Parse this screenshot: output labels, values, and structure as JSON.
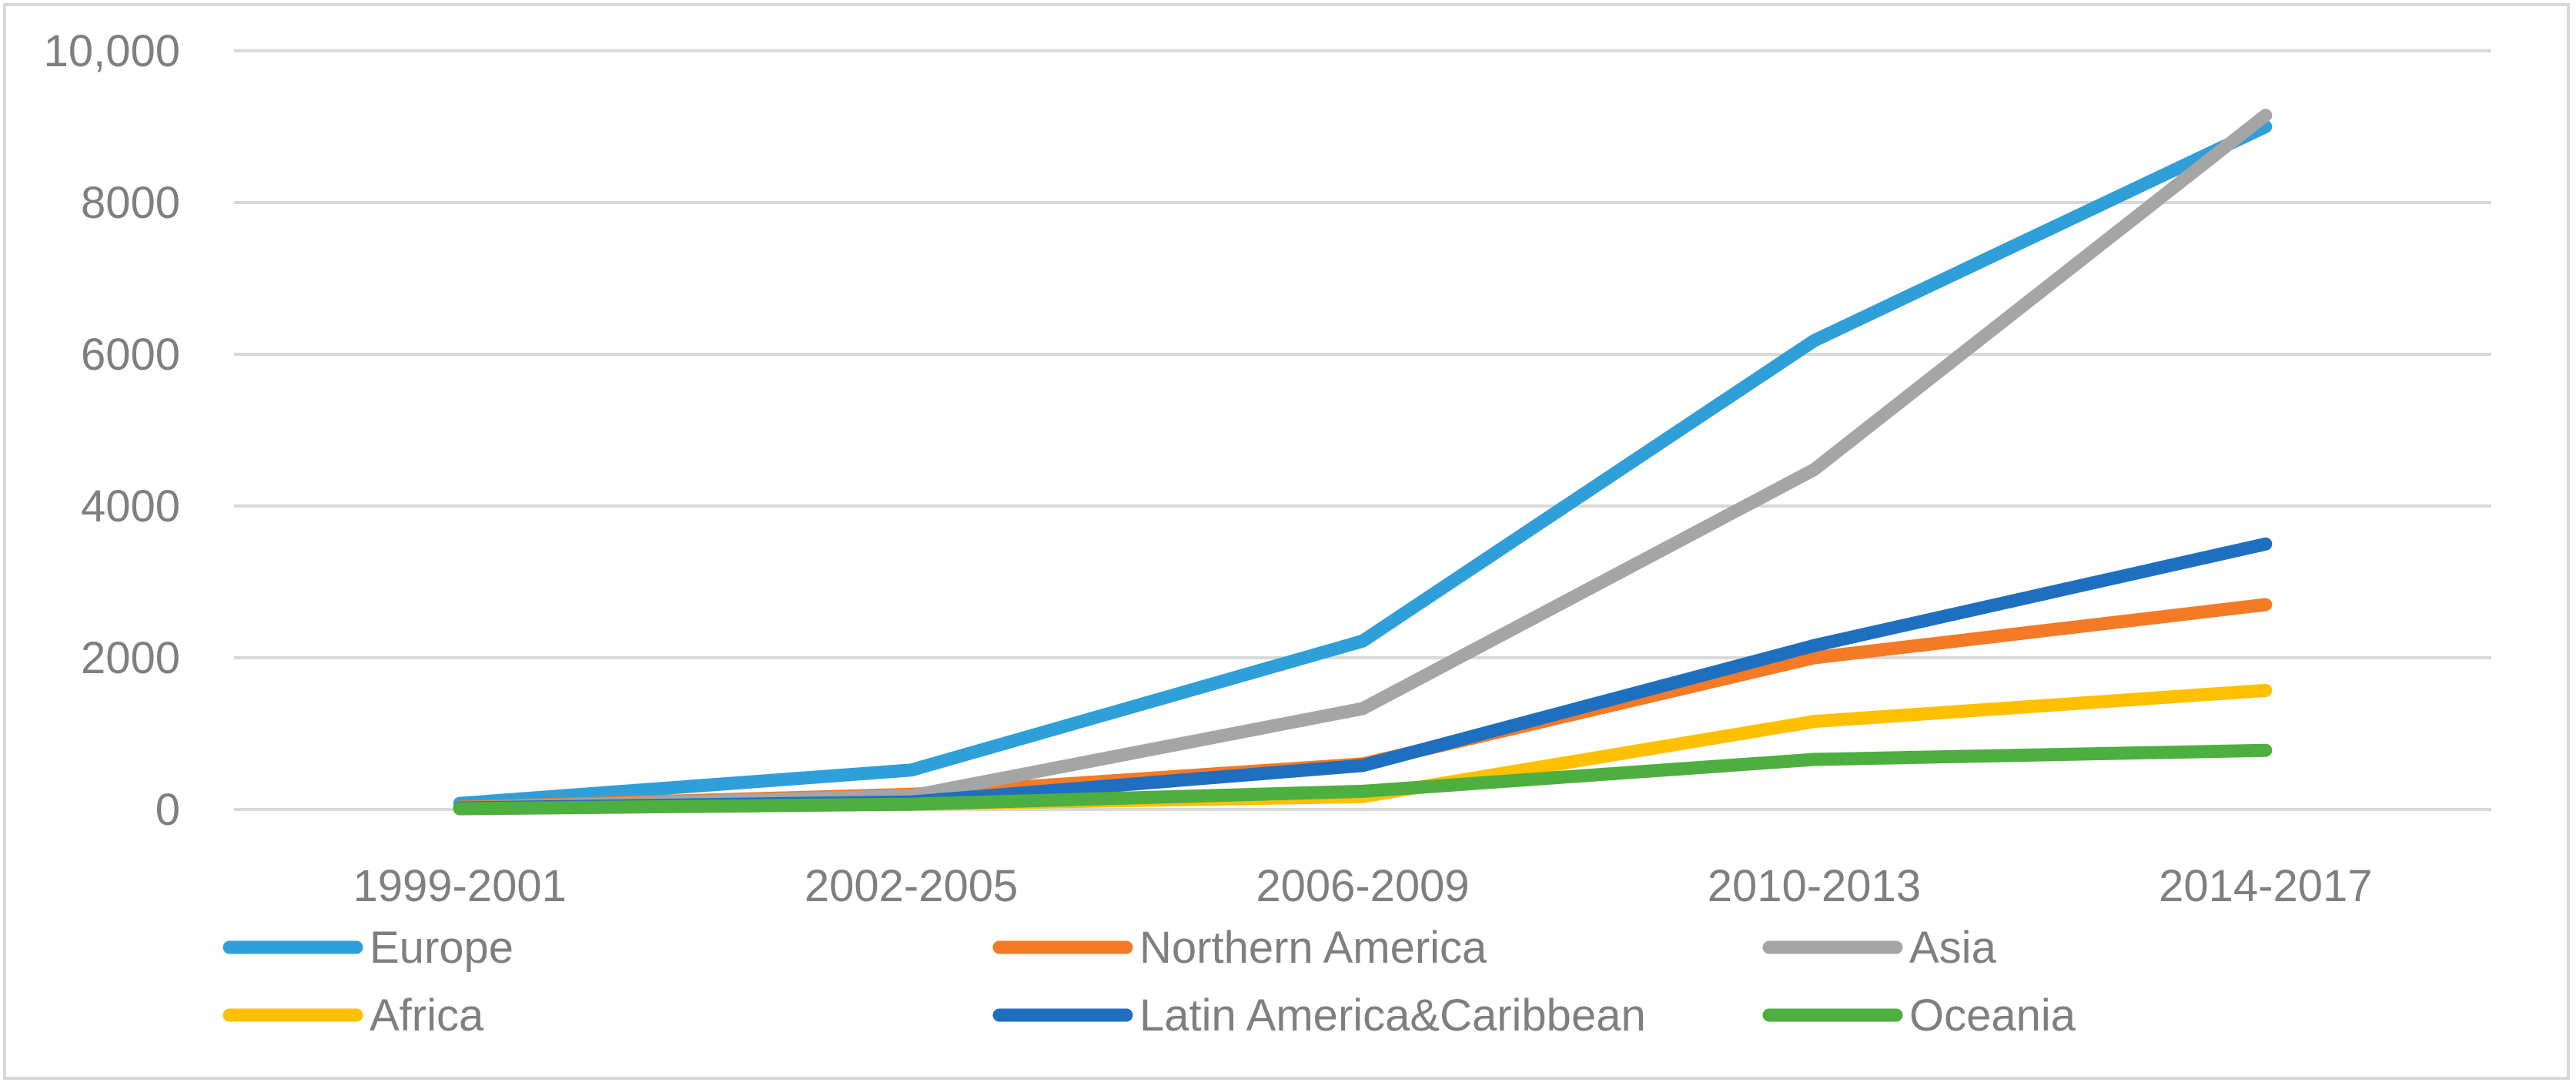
{
  "chart_data": {
    "type": "line",
    "title": "",
    "xlabel": "",
    "ylabel": "",
    "categories": [
      "1999-2001",
      "2002-2005",
      "2006-2009",
      "2010-2013",
      "2014-2017"
    ],
    "ylim": [
      0,
      10000
    ],
    "yticks": [
      0,
      2000,
      4000,
      6000,
      8000,
      10000
    ],
    "ytick_labels": [
      "0",
      "2000",
      "4000",
      "6000",
      "8000",
      "10,000"
    ],
    "grid": true,
    "legend_position": "bottom",
    "series": [
      {
        "name": "Europe",
        "color": "#2e9fd8",
        "values": [
          80,
          520,
          2220,
          6180,
          9000
        ]
      },
      {
        "name": "Northern America",
        "color": "#f47a25",
        "values": [
          30,
          200,
          600,
          2000,
          2700
        ]
      },
      {
        "name": "Asia",
        "color": "#a5a5a5",
        "values": [
          20,
          180,
          1330,
          4480,
          9150
        ]
      },
      {
        "name": "Africa",
        "color": "#ffc000",
        "values": [
          10,
          70,
          170,
          1160,
          1570
        ]
      },
      {
        "name": "Latin America&Caribbean",
        "color": "#1f6fc1",
        "values": [
          20,
          100,
          580,
          2160,
          3500
        ]
      },
      {
        "name": "Oceania",
        "color": "#4caf3f",
        "values": [
          10,
          70,
          240,
          660,
          780
        ]
      }
    ]
  }
}
